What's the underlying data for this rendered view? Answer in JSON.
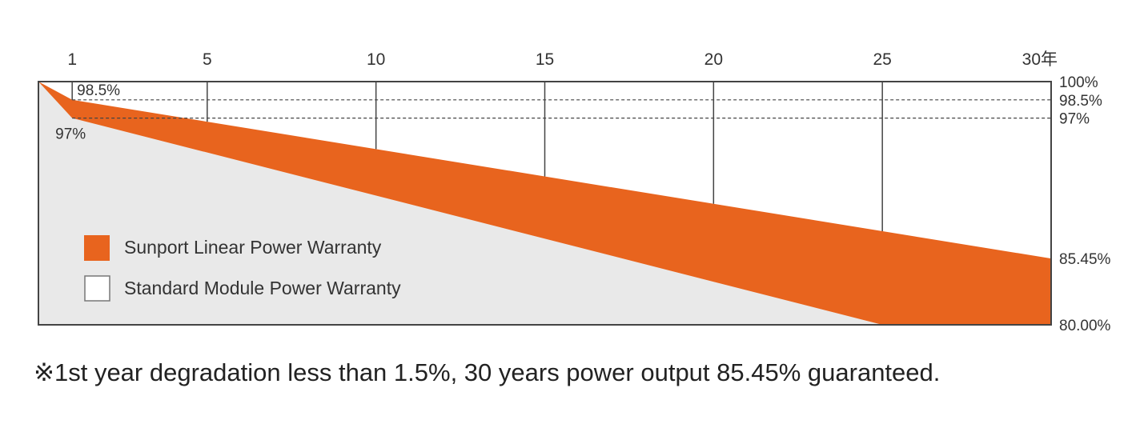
{
  "chart_data": {
    "type": "area",
    "x_axis_ticks": [
      "1",
      "5",
      "10",
      "15",
      "20",
      "25",
      "30年"
    ],
    "x_tick_values": [
      1,
      5,
      10,
      15,
      20,
      25,
      30
    ],
    "xlim": [
      0,
      30
    ],
    "y_axis_ticks": [
      "100%",
      "98.5%",
      "97%",
      "85.45%",
      "80.00%"
    ],
    "y_tick_values": [
      100,
      98.5,
      97,
      85.45,
      80
    ],
    "ylim": [
      80,
      100
    ],
    "series": [
      {
        "name": "Sunport Linear Power Warranty",
        "color": "#e8641e",
        "x": [
          0,
          1,
          30
        ],
        "values": [
          100,
          98.5,
          85.45
        ]
      },
      {
        "name": "Standard Module Power Warranty",
        "color": "#e9e9e9",
        "x": [
          0,
          1,
          25,
          30
        ],
        "values": [
          100,
          97,
          80,
          80
        ]
      }
    ],
    "annotations": [
      "98.5%",
      "97%"
    ],
    "legend_position": "bottom-left",
    "grid": "vertical lines at year ticks, dashed lines at 98.5% and 97%"
  },
  "legend": {
    "sunport_label": "Sunport Linear Power Warranty",
    "standard_label": "Standard Module Power Warranty"
  },
  "footnote": "※1st year degradation less than 1.5%, 30 years power output 85.45% guaranteed."
}
